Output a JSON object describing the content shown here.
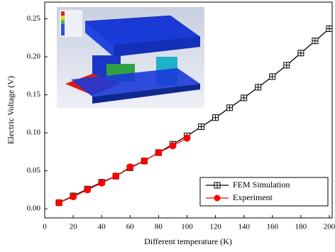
{
  "chart_data": {
    "type": "line",
    "xlabel": "Different temperature (K)",
    "ylabel": "Electric Voltage (V)",
    "xlim": [
      0,
      202
    ],
    "ylim": [
      -0.012,
      0.272
    ],
    "xticks": [
      0,
      20,
      40,
      60,
      80,
      100,
      120,
      140,
      160,
      180,
      200
    ],
    "yticks": [
      {
        "value": 0,
        "label": "0.00"
      },
      {
        "value": 0.05,
        "label": "0.05"
      },
      {
        "value": 0.1,
        "label": "0.10"
      },
      {
        "value": 0.15,
        "label": "0.15"
      },
      {
        "value": 0.2,
        "label": "0.20"
      },
      {
        "value": 0.25,
        "label": "0.25"
      }
    ],
    "legend": "lower right",
    "series": [
      {
        "name": "FEM Simulation",
        "color": "#000000",
        "marker": "square-cross",
        "x": [
          10,
          20,
          30,
          40,
          50,
          60,
          70,
          80,
          90,
          100,
          110,
          120,
          130,
          140,
          150,
          160,
          170,
          180,
          190,
          200
        ],
        "values": [
          0.008,
          0.017,
          0.026,
          0.035,
          0.043,
          0.054,
          0.063,
          0.074,
          0.085,
          0.096,
          0.108,
          0.12,
          0.133,
          0.146,
          0.16,
          0.174,
          0.189,
          0.205,
          0.221,
          0.237
        ]
      },
      {
        "name": "Experiment",
        "color": "#ff0000",
        "marker": "circle",
        "x": [
          10,
          20,
          30,
          40,
          50,
          60,
          70,
          80,
          90,
          100
        ],
        "values": [
          0.008,
          0.016,
          0.025,
          0.034,
          0.043,
          0.055,
          0.063,
          0.074,
          0.083,
          0.093
        ]
      }
    ]
  }
}
